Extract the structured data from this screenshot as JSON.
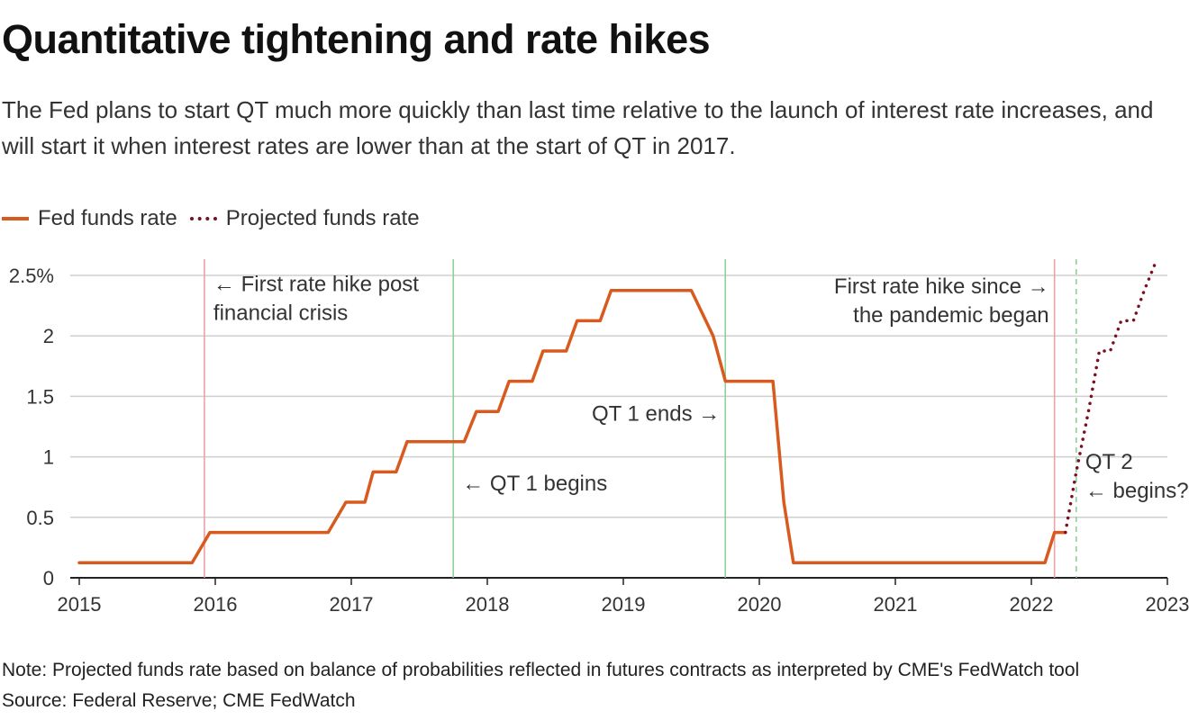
{
  "header": {
    "title": "Quantitative tightening and rate hikes",
    "subtitle": "The Fed plans to start QT much more quickly than last time relative to the launch of interest rate increases, and will start it when interest rates are lower than at the start of QT in 2017."
  },
  "footer": {
    "note": "Note: Projected funds rate based on balance of probabilities reflected in futures contracts as interpreted by CME's FedWatch tool",
    "source": "Source: Federal Reserve; CME FedWatch"
  },
  "colors": {
    "fed_funds": "#d95a1e",
    "projected": "#7a1020",
    "hike_marker": "#e8a3a3",
    "qt_marker": "#8fcf98",
    "grid": "#cfcfcf",
    "axis": "#222222"
  },
  "chart_data": {
    "type": "line",
    "xlim": [
      2015,
      2023
    ],
    "ylim": [
      0,
      2.5
    ],
    "x_ticks": [
      2015,
      2016,
      2017,
      2018,
      2019,
      2020,
      2021,
      2022,
      2023
    ],
    "x_tick_labels": [
      "2015",
      "2016",
      "2017",
      "2018",
      "2019",
      "2020",
      "2021",
      "2022",
      "2023"
    ],
    "y_ticks": [
      0,
      0.5,
      1,
      1.5,
      2,
      2.5
    ],
    "y_tick_labels": [
      "0",
      "0.5",
      "1",
      "1.5",
      "2",
      "2.5%"
    ],
    "grid": true,
    "legend_position": "top-left",
    "series": [
      {
        "name": "Fed funds rate",
        "style": "solid",
        "points": [
          [
            2015.0,
            0.125
          ],
          [
            2015.83,
            0.125
          ],
          [
            2015.96,
            0.375
          ],
          [
            2016.83,
            0.375
          ],
          [
            2016.96,
            0.625
          ],
          [
            2017.1,
            0.625
          ],
          [
            2017.16,
            0.875
          ],
          [
            2017.33,
            0.875
          ],
          [
            2017.41,
            1.125
          ],
          [
            2017.83,
            1.125
          ],
          [
            2017.92,
            1.375
          ],
          [
            2018.08,
            1.375
          ],
          [
            2018.16,
            1.625
          ],
          [
            2018.33,
            1.625
          ],
          [
            2018.41,
            1.875
          ],
          [
            2018.58,
            1.875
          ],
          [
            2018.66,
            2.125
          ],
          [
            2018.83,
            2.125
          ],
          [
            2018.91,
            2.375
          ],
          [
            2019.5,
            2.375
          ],
          [
            2019.66,
            2.0
          ],
          [
            2019.75,
            1.625
          ],
          [
            2020.1,
            1.625
          ],
          [
            2020.18,
            0.625
          ],
          [
            2020.25,
            0.125
          ],
          [
            2022.1,
            0.125
          ],
          [
            2022.17,
            0.375
          ],
          [
            2022.25,
            0.375
          ]
        ]
      },
      {
        "name": "Projected funds rate",
        "style": "dotted",
        "points": [
          [
            2022.25,
            0.375
          ],
          [
            2022.33,
            0.875
          ],
          [
            2022.42,
            1.375
          ],
          [
            2022.5,
            1.875
          ],
          [
            2022.58,
            1.875
          ],
          [
            2022.66,
            2.125
          ],
          [
            2022.75,
            2.125
          ],
          [
            2022.83,
            2.375
          ],
          [
            2022.92,
            2.625
          ]
        ]
      }
    ],
    "markers": [
      {
        "x": 2015.92,
        "kind": "hike",
        "style": "solid"
      },
      {
        "x": 2017.75,
        "kind": "qt",
        "style": "solid"
      },
      {
        "x": 2019.75,
        "kind": "qt",
        "style": "solid"
      },
      {
        "x": 2022.17,
        "kind": "hike",
        "style": "solid"
      },
      {
        "x": 2022.33,
        "kind": "qt",
        "style": "dashed"
      }
    ],
    "annotations": [
      {
        "lines": [
          "← First rate hike post",
          "financial crisis"
        ],
        "x": 2015.92,
        "y": 2.37,
        "align": "start"
      },
      {
        "lines": [
          "← QT 1 begins"
        ],
        "x": 2017.75,
        "y": 0.72,
        "align": "start"
      },
      {
        "lines": [
          "QT 1 ends →"
        ],
        "x": 2019.75,
        "y": 1.3,
        "align": "end"
      },
      {
        "lines": [
          "First rate hike since →",
          "the pandemic  began"
        ],
        "x": 2022.17,
        "y": 2.35,
        "align": "end"
      },
      {
        "lines": [
          "QT 2",
          "← begins?"
        ],
        "x": 2022.33,
        "y": 0.9,
        "align": "start"
      }
    ]
  }
}
